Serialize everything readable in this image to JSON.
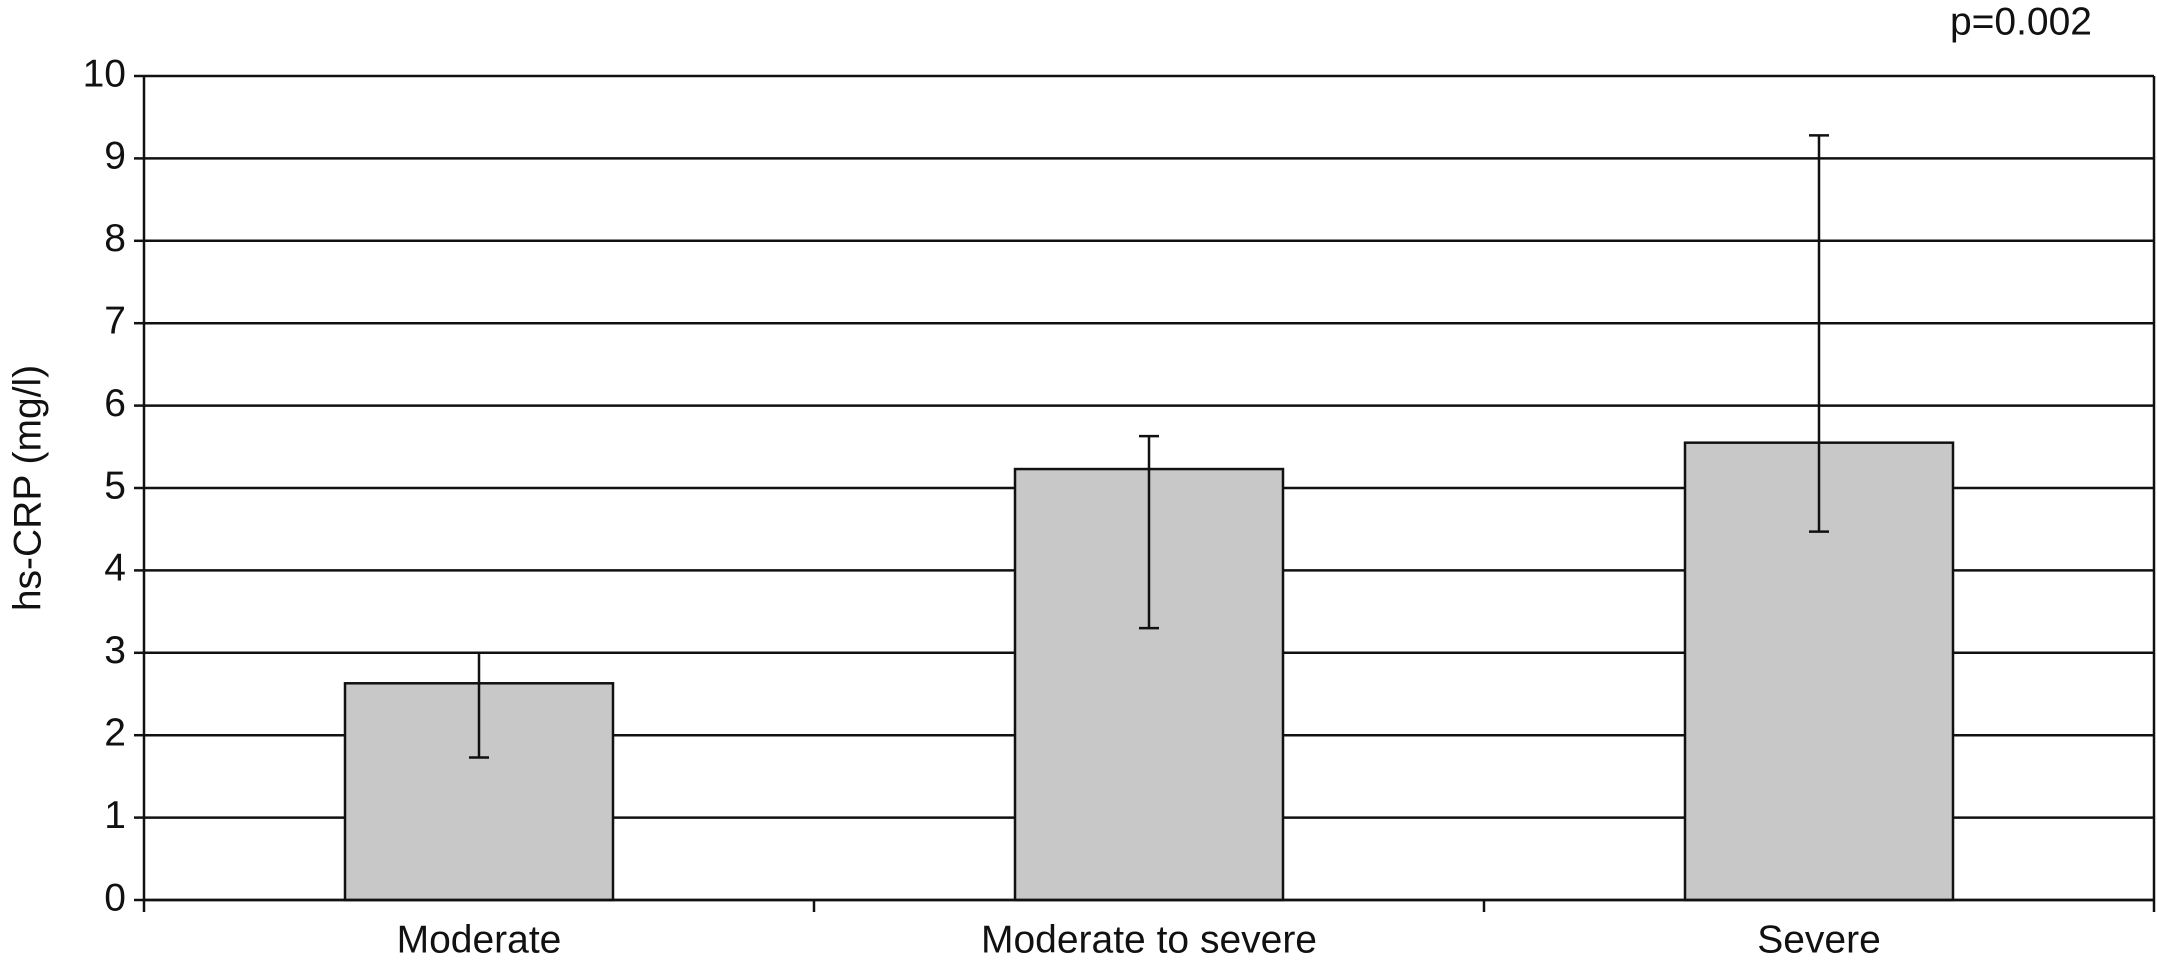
{
  "chart_data": {
    "type": "bar",
    "y_label": "hs-CRP (mg/l)",
    "annotation": "p=0.002",
    "categories": [
      "Moderate",
      "Moderate to severe",
      "Severe"
    ],
    "values": [
      2.63,
      5.23,
      5.55
    ],
    "error_low": [
      1.73,
      3.3,
      4.47
    ],
    "error_high": [
      3.0,
      5.63,
      9.28
    ],
    "color": "#c8c8c8",
    "ylim": [
      0,
      10
    ],
    "yticks": [
      0,
      1,
      2,
      3,
      4,
      5,
      6,
      7,
      8,
      9,
      10
    ],
    "grid": true
  }
}
